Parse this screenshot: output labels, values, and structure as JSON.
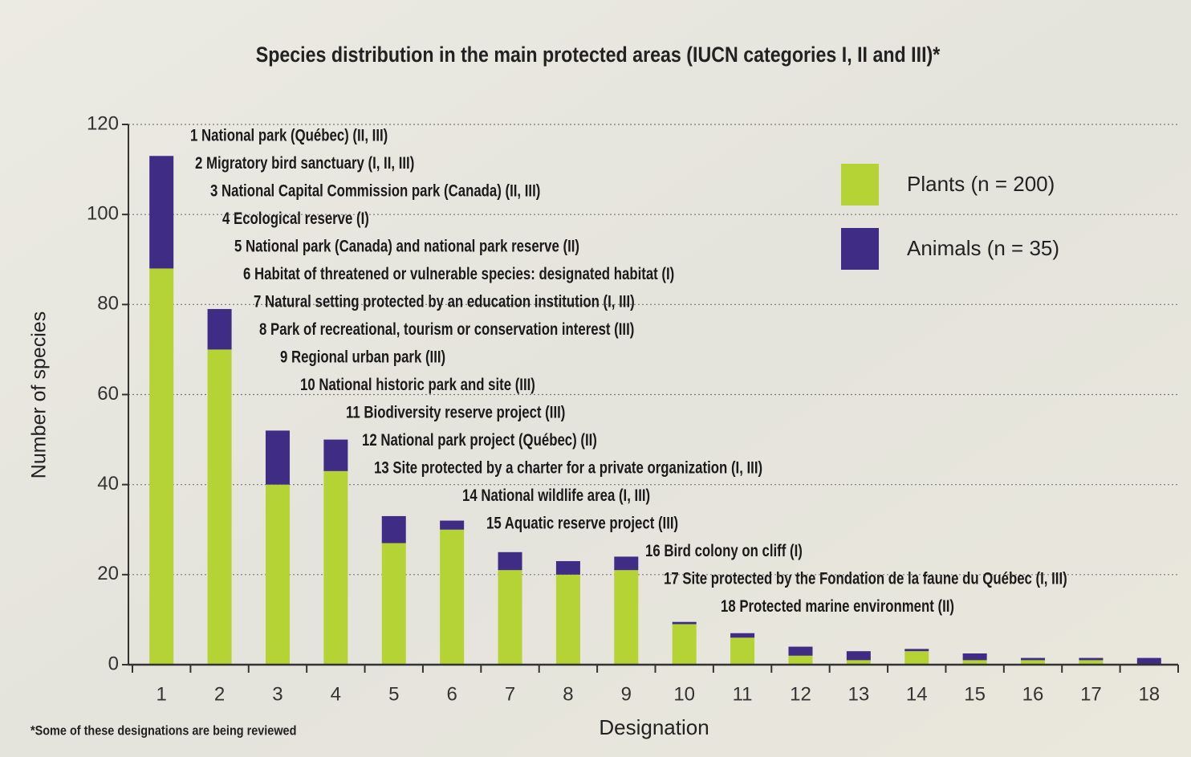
{
  "chart_data": {
    "type": "stacked_bar",
    "title": "Species distribution in the main protected areas (IUCN categories I, II and III)*",
    "y_label": "Number of species",
    "x_label": "Designation",
    "footnote": "*Some of these designations are being reviewed",
    "categories": [
      "1",
      "2",
      "3",
      "4",
      "5",
      "6",
      "7",
      "8",
      "9",
      "10",
      "11",
      "12",
      "13",
      "14",
      "15",
      "16",
      "17",
      "18"
    ],
    "series": [
      {
        "name": "Plants (n = 200)",
        "color": "#b5d334",
        "values": [
          88,
          70,
          40,
          43,
          27,
          30,
          21,
          20,
          21,
          9,
          6,
          2,
          1,
          3,
          1,
          1,
          1,
          0
        ]
      },
      {
        "name": "Animals (n = 35)",
        "color": "#3f2d85",
        "values": [
          25,
          9,
          12,
          7,
          6,
          2,
          4,
          3,
          3,
          0.5,
          1,
          2,
          2,
          0.5,
          1.5,
          0.5,
          0.5,
          1.5
        ]
      }
    ],
    "ylim": [
      0,
      120
    ],
    "yticks": [
      0,
      20,
      40,
      60,
      80,
      100,
      120
    ],
    "grid": true,
    "annotations": [
      "1 National park (Québec) (II, III)",
      "2 Migratory bird sanctuary (I, II, III)",
      "3 National Capital Commission park (Canada) (II, III)",
      "4 Ecological reserve (I)",
      "5 National park (Canada) and national park reserve (II)",
      "6 Habitat of threatened or vulnerable species: designated habitat (I)",
      "7 Natural setting protected by an education institution (I, III)",
      "8 Park of recreational, tourism or conservation interest (III)",
      "9 Regional urban park (III)",
      "10 National historic park and site (III)",
      "11 Biodiversity reserve project (III)",
      "12 National park project (Québec) (II)",
      "13 Site protected by a charter for a private organization (I, III)",
      "14 National wildlife area (I, III)",
      "15 Aquatic reserve project (III)",
      "16 Bird colony on cliff (I)",
      "17 Site protected by the Fondation de la faune du Québec (I, III)",
      "18 Protected marine environment (II)"
    ]
  }
}
